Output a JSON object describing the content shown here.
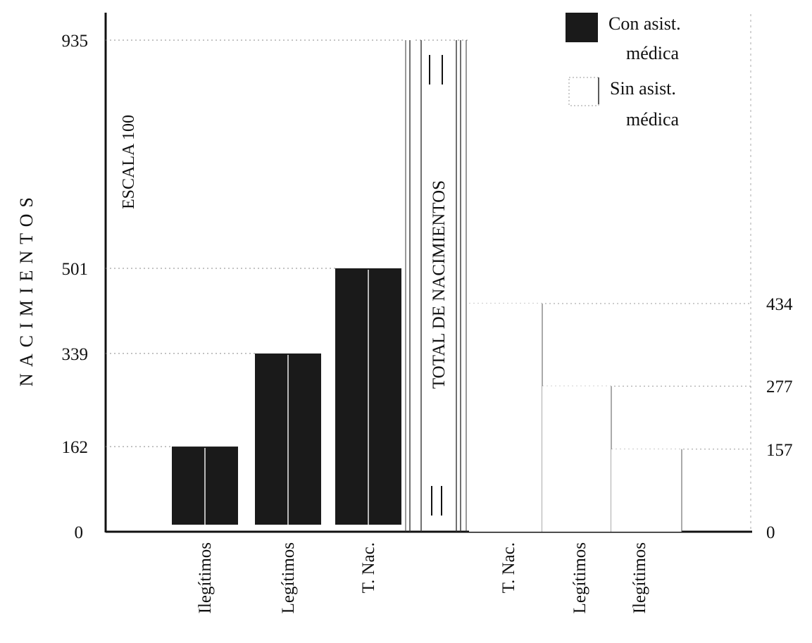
{
  "chart_data": {
    "type": "bar",
    "ylabel": "NACIMIENTOS",
    "scale_note": "ESCALA 100",
    "total_label": "TOTAL DE NACIMIENTOS",
    "total_value": 935,
    "ylim": [
      0,
      935
    ],
    "yticks_left": [
      {
        "value": 0,
        "label": "0"
      },
      {
        "value": 162,
        "label": "162"
      },
      {
        "value": 339,
        "label": "339"
      },
      {
        "value": 501,
        "label": "501"
      },
      {
        "value": 935,
        "label": "935"
      }
    ],
    "yticks_right": [
      {
        "value": 0,
        "label": "0"
      },
      {
        "value": 157,
        "label": "157"
      },
      {
        "value": 277,
        "label": "277"
      },
      {
        "value": 434,
        "label": "434"
      }
    ],
    "series": [
      {
        "name": "Con asist. médica",
        "color": "#1a1a1a",
        "bars": [
          {
            "category": "Ilegítimos",
            "value": 162
          },
          {
            "category": "Legítimos",
            "value": 339
          },
          {
            "category": "T. Nac.",
            "value": 501
          }
        ]
      },
      {
        "name": "Sin asist. médica",
        "color": "#ffffff",
        "bars": [
          {
            "category": "T. Nac.",
            "value": 434
          },
          {
            "category": "Legítimos",
            "value": 277
          },
          {
            "category": "Ilegítimos",
            "value": 157
          }
        ]
      }
    ],
    "legend": {
      "placement": "top-right",
      "entries": [
        {
          "line1": "Con asist.",
          "line2": "médica"
        },
        {
          "line1": "Sin asist.",
          "line2": "médica"
        }
      ]
    },
    "grid": "dotted guide lines at bar tops"
  }
}
